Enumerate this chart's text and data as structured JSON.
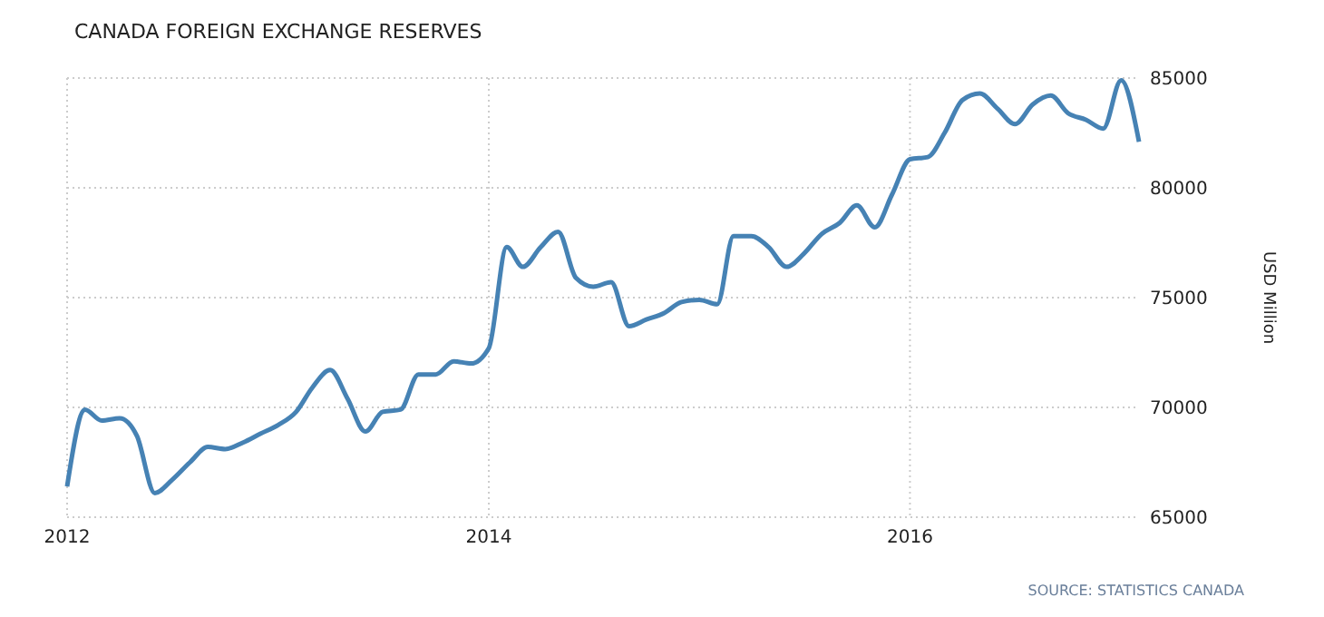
{
  "chart_data": {
    "type": "line",
    "title": "CANADA FOREIGN EXCHANGE RESERVES",
    "ylabel": "USD Million",
    "annotations": [
      "SOURCE: STATISTICS CANADA"
    ],
    "x": [
      "2012-01",
      "2012-02",
      "2012-03",
      "2012-04",
      "2012-05",
      "2012-06",
      "2012-07",
      "2012-08",
      "2012-09",
      "2012-10",
      "2012-11",
      "2012-12",
      "2013-01",
      "2013-02",
      "2013-03",
      "2013-04",
      "2013-05",
      "2013-06",
      "2013-07",
      "2013-08",
      "2013-09",
      "2013-10",
      "2013-11",
      "2013-12",
      "2014-01",
      "2014-02",
      "2014-03",
      "2014-04",
      "2014-05",
      "2014-06",
      "2014-07",
      "2014-08",
      "2014-09",
      "2014-10",
      "2014-11",
      "2014-12",
      "2015-01",
      "2015-02",
      "2015-03",
      "2015-04",
      "2015-05",
      "2015-06",
      "2015-07",
      "2015-08",
      "2015-09",
      "2015-10",
      "2015-11",
      "2015-12",
      "2016-01",
      "2016-02",
      "2016-03",
      "2016-04",
      "2016-05",
      "2016-06",
      "2016-07",
      "2016-08",
      "2016-09",
      "2016-10",
      "2016-11",
      "2016-12",
      "2017-01",
      "2017-02"
    ],
    "series": [
      {
        "color": "#4682b4",
        "values": [
          66400,
          69900,
          69400,
          69500,
          68700,
          66100,
          66700,
          67500,
          68200,
          68100,
          68400,
          68800,
          69200,
          69800,
          70900,
          71700,
          70400,
          68900,
          69800,
          69900,
          71500,
          71500,
          72100,
          72000,
          72700,
          77300,
          76400,
          77300,
          78000,
          75900,
          75500,
          75700,
          73700,
          74000,
          74300,
          74800,
          74900,
          74700,
          77800,
          77800,
          77300,
          76400,
          77000,
          77900,
          78400,
          79200,
          78200,
          79700,
          81300,
          81400,
          82500,
          84000,
          84300,
          83600,
          82900,
          83800,
          84200,
          83400,
          83100,
          82700,
          84900,
          82100
        ]
      }
    ],
    "xlim": [
      "2012-01",
      "2017-02"
    ],
    "xticks": [
      {
        "value": "2012-01",
        "label": "2012"
      },
      {
        "value": "2014-01",
        "label": "2014"
      },
      {
        "value": "2016-01",
        "label": "2016"
      }
    ],
    "ylim": [
      65000,
      85000
    ],
    "yticks": [
      65000,
      70000,
      75000,
      80000,
      85000
    ],
    "grid": true,
    "marker": "none",
    "line_style": "solid"
  }
}
